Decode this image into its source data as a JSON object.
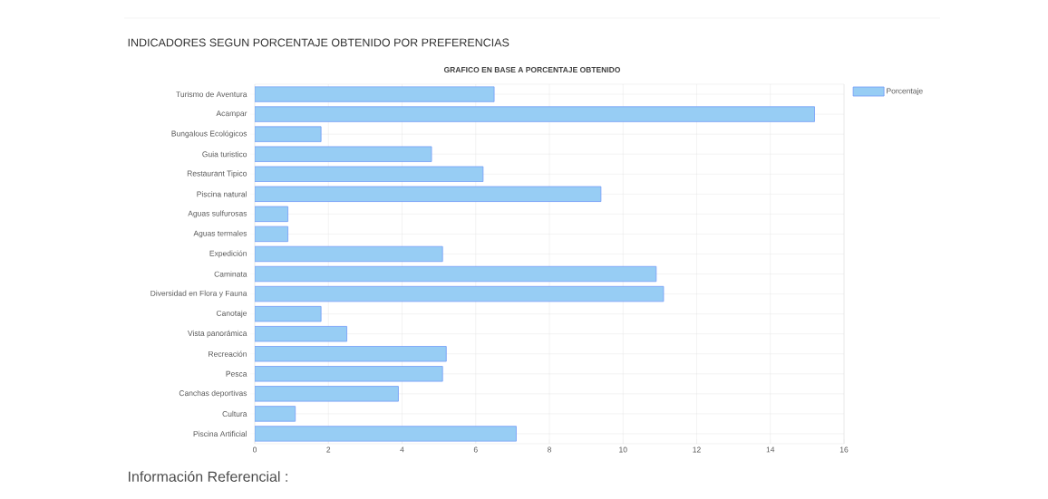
{
  "chart_data": {
    "type": "bar",
    "orientation": "horizontal",
    "title": "INDICADORES SEGUN PORCENTAJE OBTENIDO POR PREFERENCIAS",
    "subtitle": "GRAFICO EN BASE A PORCENTAJE OBTENIDO",
    "categories": [
      "Turismo de Aventura",
      "Acampar",
      "Bungalous Ecológicos",
      "Guia turistico",
      "Restaurant Tipico",
      "Piscina natural",
      "Aguas sulfurosas",
      "Aguas termales",
      "Expedición",
      "Caminata",
      "Diversidad en Flora y Fauna",
      "Canotaje",
      "Vista panorámica",
      "Recreación",
      "Pesca",
      "Canchas deportivas",
      "Cultura",
      "Piscina Artificial"
    ],
    "series": [
      {
        "name": "Porcentaje",
        "color": "#97cdf4",
        "values": [
          6.5,
          15.2,
          1.8,
          4.8,
          6.2,
          9.4,
          0.9,
          0.9,
          5.1,
          10.9,
          11.1,
          1.8,
          2.5,
          5.2,
          5.1,
          3.9,
          1.1,
          7.1
        ]
      }
    ],
    "xlim": [
      0,
      16
    ],
    "xticks": [
      0,
      2,
      4,
      6,
      8,
      10,
      12,
      14,
      16
    ],
    "grid": true,
    "legend": "top right",
    "annotations": [
      "Información Referencial :"
    ]
  }
}
